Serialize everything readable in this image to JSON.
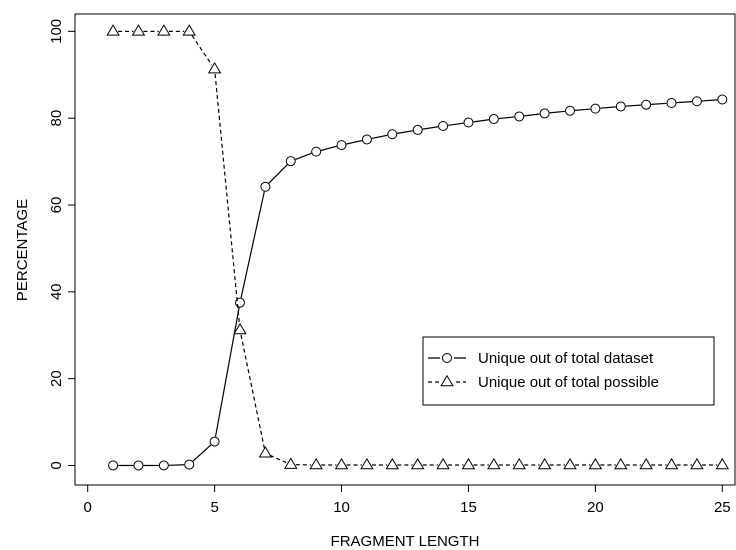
{
  "chart_data": {
    "type": "line",
    "title": "",
    "xlabel": "FRAGMENT LENGTH",
    "ylabel": "PERCENTAGE",
    "xlim": [
      -0.5,
      25.5
    ],
    "ylim": [
      -4.5,
      104
    ],
    "xticks": [
      0,
      5,
      10,
      15,
      20,
      25
    ],
    "yticks": [
      0,
      20,
      40,
      60,
      80,
      100
    ],
    "grid": false,
    "legend_position": "center-right",
    "x": [
      1,
      2,
      3,
      4,
      5,
      6,
      7,
      8,
      9,
      10,
      11,
      12,
      13,
      14,
      15,
      16,
      17,
      18,
      19,
      20,
      21,
      22,
      23,
      24,
      25
    ],
    "series": [
      {
        "name": "Unique out of total dataset",
        "marker": "circle",
        "line_style": "solid",
        "color": "#000000",
        "values": [
          0,
          0,
          0,
          0.2,
          5.5,
          37.5,
          64.2,
          70.1,
          72.3,
          73.8,
          75.1,
          76.3,
          77.3,
          78.2,
          79.0,
          79.8,
          80.4,
          81.1,
          81.7,
          82.2,
          82.7,
          83.1,
          83.5,
          83.9,
          84.3
        ]
      },
      {
        "name": "Unique out of total possible",
        "marker": "triangle",
        "line_style": "dashed",
        "color": "#000000",
        "values": [
          100,
          100,
          100,
          100,
          91.3,
          31.2,
          2.8,
          0.2,
          0.1,
          0.1,
          0.1,
          0.1,
          0.1,
          0.1,
          0.1,
          0.1,
          0.1,
          0.1,
          0.1,
          0.1,
          0.1,
          0.1,
          0.1,
          0.1,
          0.1
        ]
      }
    ]
  }
}
